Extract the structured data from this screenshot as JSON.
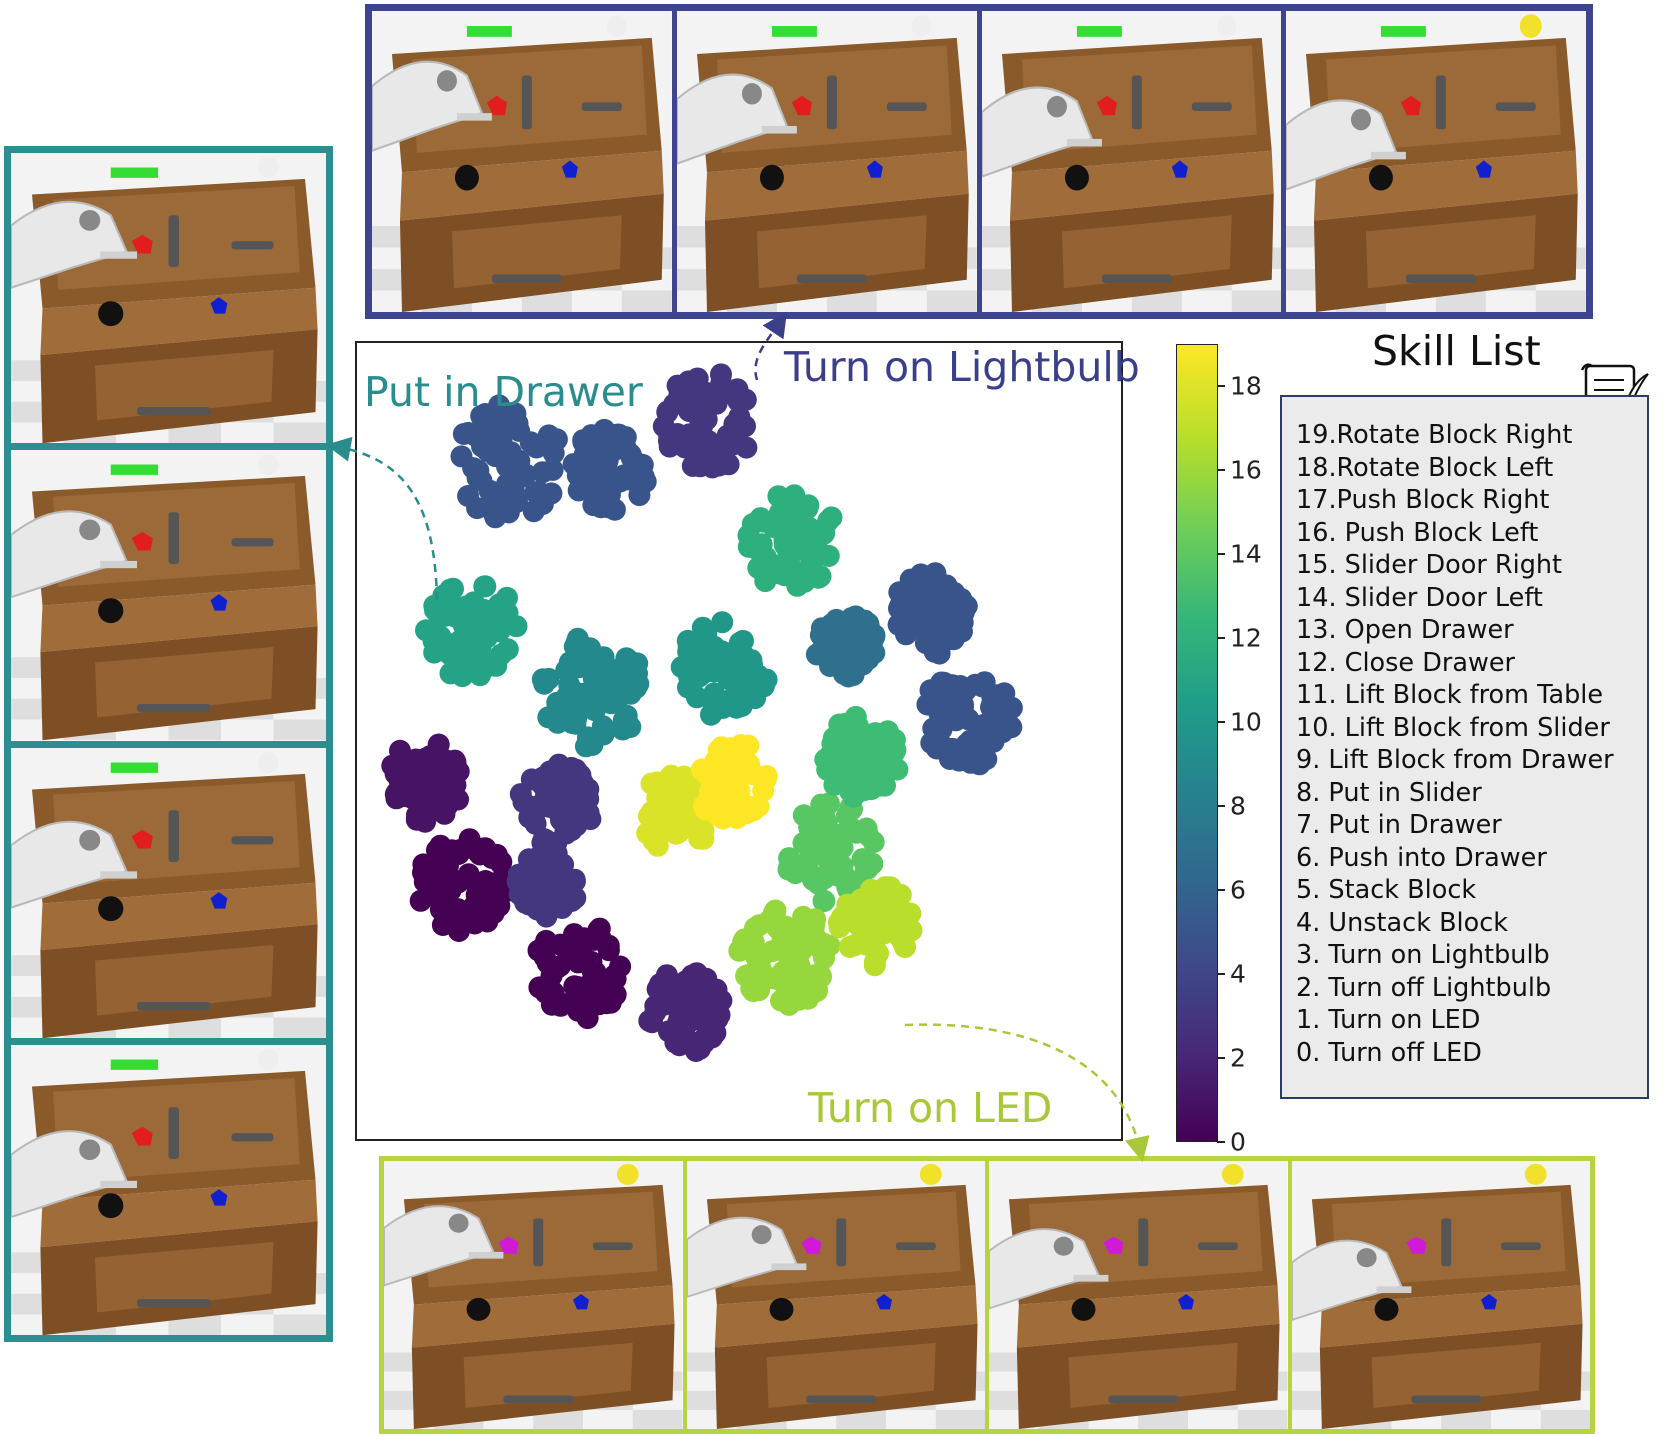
{
  "colors": {
    "lightbulb": "#3b3f8a",
    "drawer": "#2a8c8c",
    "led": "#a8c83a",
    "frame_lightbulb_border": "#3f448e",
    "frame_drawer_border": "#2c8f8f",
    "frame_led_border": "#b7d33f"
  },
  "annotations": {
    "put_in_drawer": "Put in Drawer",
    "turn_on_lightbulb": "Turn on Lightbulb",
    "turn_on_led": "Turn on LED"
  },
  "frames": {
    "top": {
      "count": 4,
      "button": "green",
      "led": "white"
    },
    "left": {
      "count": 4,
      "button": "green",
      "led": "white"
    },
    "bottom": {
      "count": 4,
      "button": "none",
      "led": "yellow"
    }
  },
  "colorbar": {
    "min": 0,
    "max": 19,
    "ticks": [
      "0",
      "2",
      "4",
      "6",
      "8",
      "10",
      "12",
      "14",
      "16",
      "18"
    ]
  },
  "skill_list": {
    "title": "Skill List",
    "items": [
      "19.Rotate Block Right",
      "18.Rotate Block Left",
      "17.Push Block Right",
      "16. Push Block Left",
      "15. Slider Door Right",
      "14. Slider Door Left",
      "13. Open Drawer",
      "12. Close Drawer",
      "11. Lift Block from Table",
      "10. Lift Block from Slider",
      "9. Lift Block from Drawer",
      "8. Put in Slider",
      "7. Put in Drawer",
      "6. Push into Drawer",
      "5. Stack Block",
      "4. Unstack Block",
      "3. Turn on Lightbulb",
      "2. Turn off Lightbulb",
      "1. Turn on LED",
      "0. Turn off LED"
    ],
    "icon": "scroll-quill-icon"
  },
  "chart_data": {
    "type": "scatter",
    "colormap": "viridis",
    "color_range": [
      0,
      19
    ],
    "clusters": [
      {
        "label": 3,
        "center": [
          0.46,
          0.1
        ],
        "spread": 0.06
      },
      {
        "label": 5,
        "center": [
          0.2,
          0.15
        ],
        "spread": 0.07
      },
      {
        "label": 5,
        "center": [
          0.33,
          0.16
        ],
        "spread": 0.05
      },
      {
        "label": 12,
        "center": [
          0.57,
          0.25
        ],
        "spread": 0.06
      },
      {
        "label": 11,
        "center": [
          0.15,
          0.36
        ],
        "spread": 0.06
      },
      {
        "label": 9,
        "center": [
          0.31,
          0.44
        ],
        "spread": 0.07
      },
      {
        "label": 10,
        "center": [
          0.48,
          0.41
        ],
        "spread": 0.06
      },
      {
        "label": 5,
        "center": [
          0.75,
          0.34
        ],
        "spread": 0.05
      },
      {
        "label": 5,
        "center": [
          0.8,
          0.47
        ],
        "spread": 0.06
      },
      {
        "label": 1,
        "center": [
          0.09,
          0.55
        ],
        "spread": 0.05
      },
      {
        "label": 3,
        "center": [
          0.26,
          0.58
        ],
        "spread": 0.05
      },
      {
        "label": 18,
        "center": [
          0.42,
          0.59
        ],
        "spread": 0.05
      },
      {
        "label": 19,
        "center": [
          0.49,
          0.55
        ],
        "spread": 0.05
      },
      {
        "label": 14,
        "center": [
          0.62,
          0.64
        ],
        "spread": 0.06
      },
      {
        "label": 13,
        "center": [
          0.66,
          0.52
        ],
        "spread": 0.05
      },
      {
        "label": 0,
        "center": [
          0.14,
          0.68
        ],
        "spread": 0.06
      },
      {
        "label": 0,
        "center": [
          0.29,
          0.79
        ],
        "spread": 0.06
      },
      {
        "label": 3,
        "center": [
          0.25,
          0.68
        ],
        "spread": 0.04
      },
      {
        "label": 2,
        "center": [
          0.43,
          0.84
        ],
        "spread": 0.05
      },
      {
        "label": 16,
        "center": [
          0.56,
          0.77
        ],
        "spread": 0.06
      },
      {
        "label": 17,
        "center": [
          0.68,
          0.73
        ],
        "spread": 0.05
      },
      {
        "label": 7,
        "center": [
          0.64,
          0.38
        ],
        "spread": 0.04
      }
    ]
  }
}
